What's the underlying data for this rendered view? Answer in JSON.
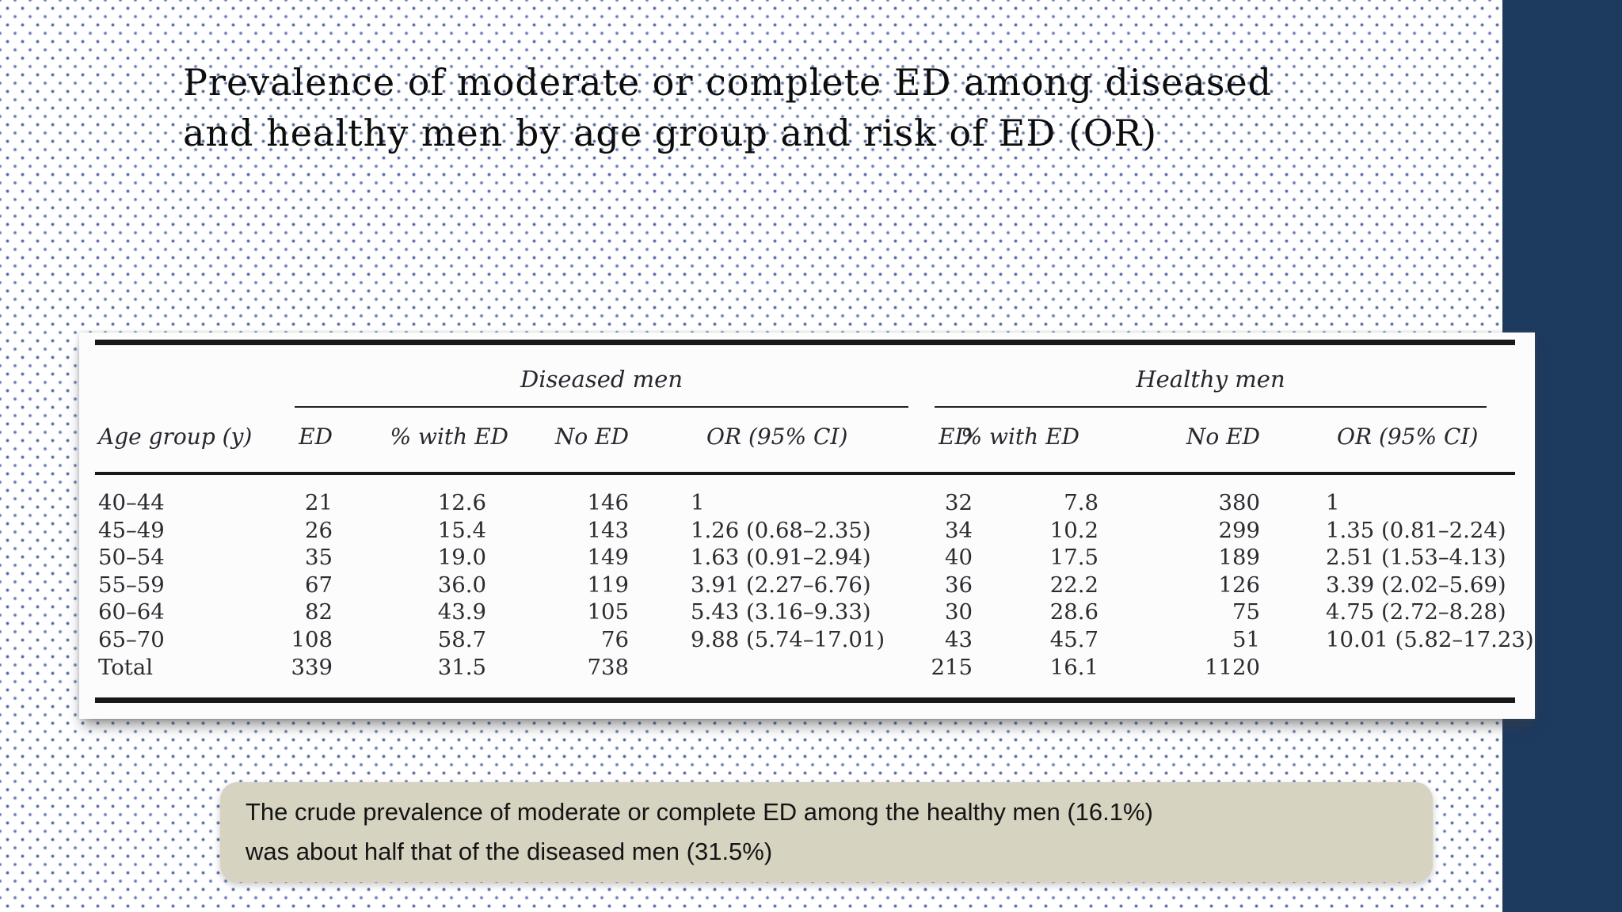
{
  "slide": {
    "title_lines": [
      "Prevalence of moderate or complete ED among diseased",
      "and healthy men by age group and risk of ED (OR)"
    ],
    "accent_bar_color": "#1d3a5f",
    "dot_color": "#51629b",
    "callout": {
      "bg_color": "#d7d3c1",
      "lines": [
        "The crude prevalence of moderate or complete ED among the healthy men (16.1%)",
        "was about half that of the diseased men (31.5%)"
      ]
    }
  },
  "table": {
    "group_headers": [
      "Diseased men",
      "Healthy men"
    ],
    "col_headers": [
      "Age group (y)",
      "ED",
      "% with ED",
      "No ED",
      "OR (95% CI)",
      "ED",
      "% with ED",
      "No ED",
      "OR (95% CI)"
    ],
    "rows": [
      {
        "cells": [
          "40–44",
          "21",
          "12.6",
          "146",
          "1",
          "32",
          "7.8",
          "380",
          "1"
        ]
      },
      {
        "cells": [
          "45–49",
          "26",
          "15.4",
          "143",
          "1.26 (0.68–2.35)",
          "34",
          "10.2",
          "299",
          "1.35 (0.81–2.24)"
        ]
      },
      {
        "cells": [
          "50–54",
          "35",
          "19.0",
          "149",
          "1.63 (0.91–2.94)",
          "40",
          "17.5",
          "189",
          "2.51 (1.53–4.13)"
        ]
      },
      {
        "cells": [
          "55–59",
          "67",
          "36.0",
          "119",
          "3.91 (2.27–6.76)",
          "36",
          "22.2",
          "126",
          "3.39 (2.02–5.69)"
        ]
      },
      {
        "cells": [
          "60–64",
          "82",
          "43.9",
          "105",
          "5.43 (3.16–9.33)",
          "30",
          "28.6",
          "75",
          "4.75 (2.72–8.28)"
        ]
      },
      {
        "cells": [
          "65–70",
          "108",
          "58.7",
          "76",
          "9.88 (5.74–17.01)",
          "43",
          "45.7",
          "51",
          "10.01 (5.82–17.23)"
        ]
      },
      {
        "cells": [
          "Total",
          "339",
          "31.5",
          "738",
          "",
          "215",
          "16.1",
          "1120",
          ""
        ]
      }
    ]
  }
}
